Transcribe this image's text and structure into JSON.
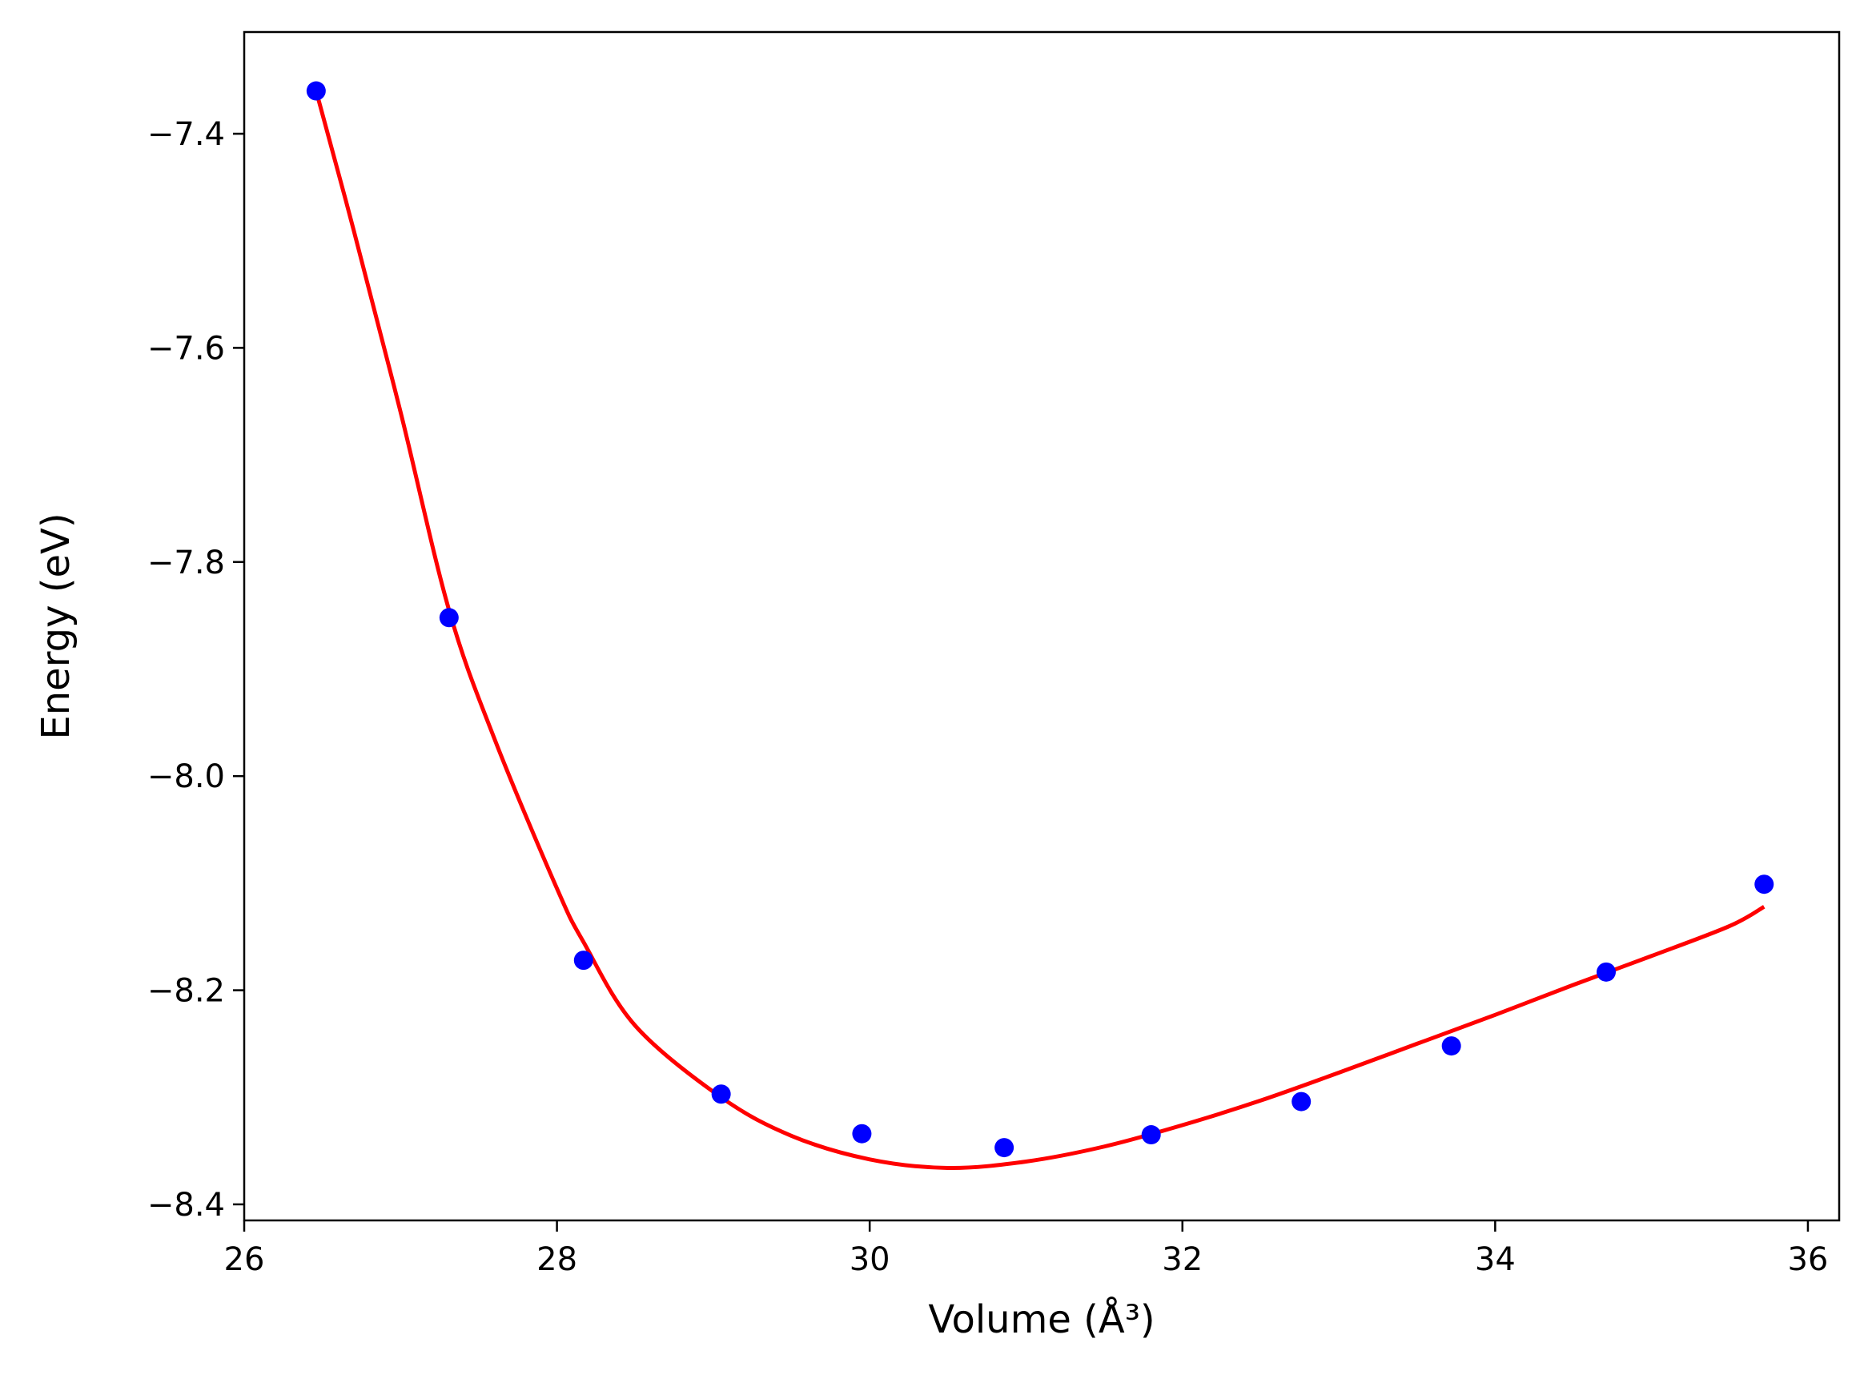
{
  "chart_data": {
    "type": "scatter",
    "title": "",
    "xlabel": "Volume (Å³)",
    "ylabel": "Energy (eV)",
    "xlim": [
      26.0,
      36.2
    ],
    "ylim": [
      -8.415,
      -7.305
    ],
    "xticks": [
      26,
      28,
      30,
      32,
      34,
      36
    ],
    "yticks": [
      -7.4,
      -7.6,
      -7.8,
      -8.0,
      -8.2,
      -8.4
    ],
    "xtick_labels": [
      "26",
      "28",
      "30",
      "32",
      "34",
      "36"
    ],
    "ytick_labels": [
      "−7.4",
      "−7.6",
      "−7.8",
      "−8.0",
      "−8.2",
      "−8.4"
    ],
    "grid": false,
    "series": [
      {
        "kind": "scatter",
        "color": "#0000ff",
        "points": [
          {
            "x": 26.46,
            "y": -7.36
          },
          {
            "x": 27.31,
            "y": -7.852
          },
          {
            "x": 28.17,
            "y": -8.172
          },
          {
            "x": 29.05,
            "y": -8.297
          },
          {
            "x": 29.95,
            "y": -8.334
          },
          {
            "x": 30.86,
            "y": -8.347
          },
          {
            "x": 31.8,
            "y": -8.335
          },
          {
            "x": 32.76,
            "y": -8.304
          },
          {
            "x": 33.72,
            "y": -8.252
          },
          {
            "x": 34.71,
            "y": -8.183
          },
          {
            "x": 35.72,
            "y": -8.101
          }
        ]
      },
      {
        "kind": "line",
        "color": "#ff0000",
        "points": [
          {
            "x": 26.46,
            "y": -7.36
          },
          {
            "x": 26.7,
            "y": -7.49
          },
          {
            "x": 27.0,
            "y": -7.66
          },
          {
            "x": 27.31,
            "y": -7.845
          },
          {
            "x": 27.6,
            "y": -7.965
          },
          {
            "x": 28.0,
            "y": -8.105
          },
          {
            "x": 28.17,
            "y": -8.155
          },
          {
            "x": 28.5,
            "y": -8.233
          },
          {
            "x": 29.05,
            "y": -8.3
          },
          {
            "x": 29.5,
            "y": -8.336
          },
          {
            "x": 30.0,
            "y": -8.358
          },
          {
            "x": 30.5,
            "y": -8.366
          },
          {
            "x": 31.0,
            "y": -8.36
          },
          {
            "x": 31.5,
            "y": -8.346
          },
          {
            "x": 32.0,
            "y": -8.326
          },
          {
            "x": 32.5,
            "y": -8.303
          },
          {
            "x": 33.0,
            "y": -8.277
          },
          {
            "x": 33.5,
            "y": -8.25
          },
          {
            "x": 34.0,
            "y": -8.223
          },
          {
            "x": 34.5,
            "y": -8.195
          },
          {
            "x": 35.0,
            "y": -8.168
          },
          {
            "x": 35.5,
            "y": -8.14
          },
          {
            "x": 35.72,
            "y": -8.122
          }
        ]
      }
    ]
  }
}
